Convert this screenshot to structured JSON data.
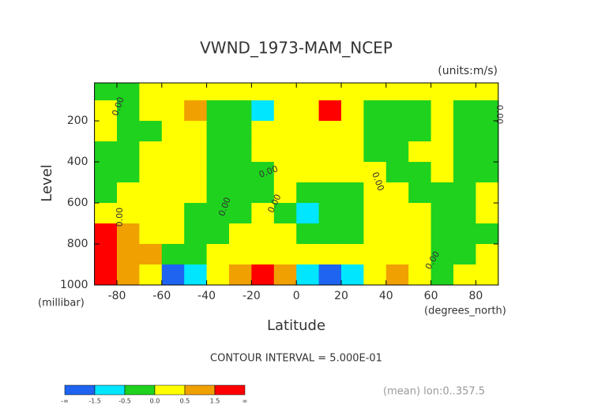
{
  "chart_data": {
    "type": "contour",
    "title": "VWND_1973-MAM_NCEP",
    "units": "(units:m/s)",
    "y_label": "Level",
    "y_units": "(millibar)",
    "x_label": "Latitude",
    "x_units": "(degrees_north)",
    "contour_interval": "CONTOUR INTERVAL = 5.000E-01",
    "footnote": "(mean) lon:0..357.5",
    "contour_label": "0.00",
    "xlim": [
      -90,
      90
    ],
    "ylim": [
      1000,
      15
    ],
    "xticks": [
      -80,
      -60,
      -40,
      -20,
      0,
      20,
      40,
      60,
      80
    ],
    "yticks": [
      200,
      400,
      600,
      800,
      1000
    ],
    "lats": [
      -85,
      -75,
      -65,
      -55,
      -45,
      -35,
      -25,
      -15,
      -5,
      5,
      15,
      25,
      35,
      45,
      55,
      65,
      75,
      85
    ],
    "levels": [
      50,
      150,
      250,
      350,
      450,
      550,
      650,
      750,
      850,
      950
    ],
    "z": [
      [
        -0.2,
        -0.1,
        0.2,
        0.2,
        0.2,
        0.2,
        0.2,
        0.3,
        0.2,
        0.3,
        0.4,
        0.3,
        0.2,
        0.2,
        0.2,
        0.2,
        0.2,
        0.2
      ],
      [
        0.2,
        -0.2,
        0.2,
        0.2,
        0.6,
        -0.2,
        -0.3,
        -0.7,
        0.2,
        0.3,
        1.6,
        0.3,
        -0.5,
        -0.2,
        -0.2,
        0.2,
        -0.2,
        -0.2
      ],
      [
        0.1,
        -0.2,
        -0.1,
        0.3,
        0.2,
        -0.2,
        -0.2,
        0.2,
        0.2,
        0.2,
        0.3,
        0.2,
        -0.2,
        -0.2,
        -0.2,
        0.2,
        -0.2,
        -0.2
      ],
      [
        -0.1,
        -0.2,
        0.2,
        0.2,
        0.2,
        -0.2,
        -0.2,
        0.2,
        0.2,
        0.2,
        0.2,
        0.2,
        -0.2,
        -0.2,
        0.2,
        0.2,
        -0.2,
        -0.2
      ],
      [
        -0.1,
        -0.2,
        0.2,
        0.2,
        0.2,
        -0.2,
        -0.2,
        -0.1,
        0.2,
        0.2,
        0.2,
        0.2,
        0.1,
        -0.2,
        -0.2,
        0.2,
        -0.2,
        -0.2
      ],
      [
        -0.1,
        0.1,
        0.2,
        0.2,
        0.2,
        -0.2,
        -0.2,
        -0.2,
        0.1,
        -0.2,
        -0.2,
        -0.1,
        0.2,
        0.2,
        -0.2,
        -0.2,
        -0.2,
        0.1
      ],
      [
        0.2,
        0.3,
        0.2,
        0.2,
        -0.2,
        -0.2,
        -0.2,
        0.1,
        -0.2,
        -0.6,
        -0.2,
        -0.2,
        0.2,
        0.2,
        0.2,
        -0.2,
        -0.2,
        0.1
      ],
      [
        1.6,
        0.8,
        0.2,
        0.2,
        -0.2,
        -0.2,
        0.2,
        0.2,
        0.2,
        -0.2,
        -0.2,
        -0.2,
        0.2,
        0.2,
        0.2,
        -0.2,
        -0.2,
        -0.2
      ],
      [
        1.8,
        0.9,
        0.6,
        -0.2,
        -0.2,
        0.2,
        0.2,
        0.3,
        0.2,
        0.2,
        0.2,
        0.2,
        0.2,
        0.2,
        0.2,
        -0.2,
        -0.2,
        0.2
      ],
      [
        2.0,
        1.0,
        0.3,
        -1.6,
        -0.8,
        0.2,
        1.0,
        1.6,
        0.7,
        -1.0,
        -1.6,
        -0.7,
        0.3,
        0.6,
        0.2,
        -0.2,
        0.2,
        0.2
      ]
    ],
    "colorbar": {
      "levels": [
        -1.5,
        -0.5,
        0,
        0.5,
        1.5
      ],
      "colors": [
        "#1e64f0",
        "#00e6ff",
        "#1ed21e",
        "#ffff00",
        "#f0a000",
        "#ff0000"
      ],
      "labels": [
        "-∞",
        "-1.5",
        "-0.5",
        "0.0",
        "0.5",
        "1.5",
        "∞"
      ]
    }
  }
}
